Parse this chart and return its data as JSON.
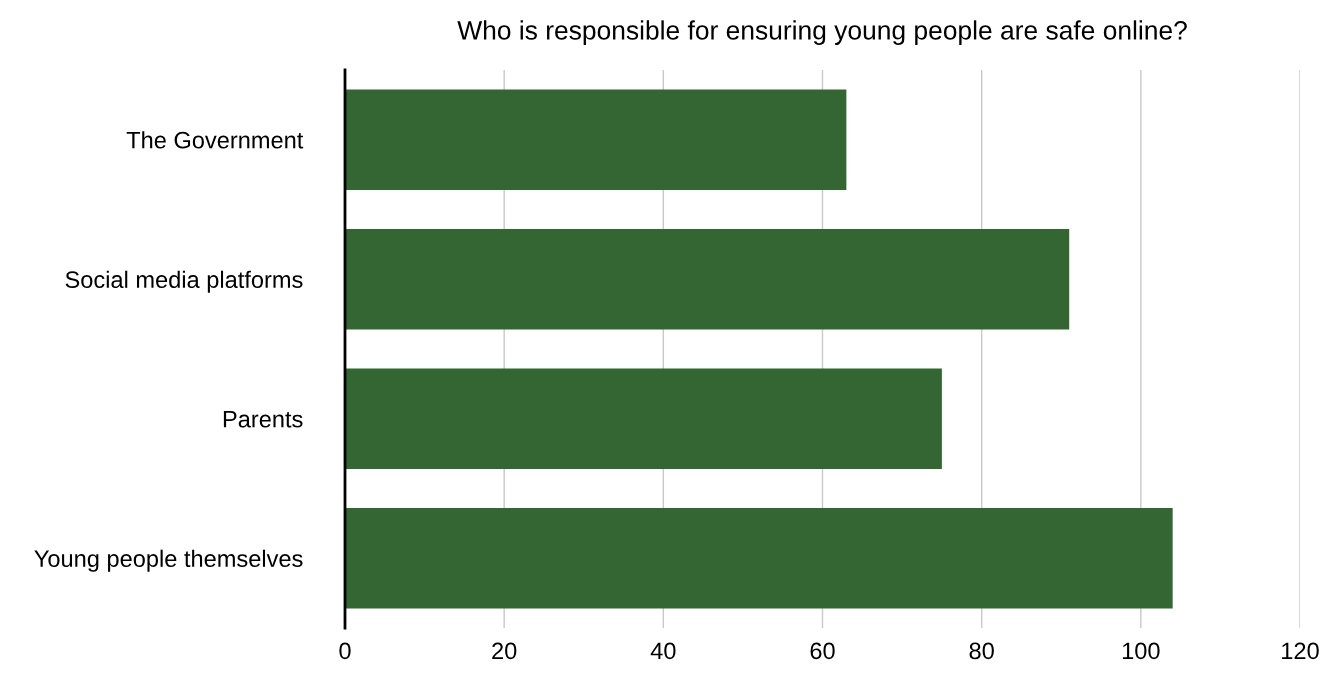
{
  "chart_data": {
    "type": "bar",
    "orientation": "horizontal",
    "title": "Who is responsible for ensuring young people are safe online?",
    "categories": [
      "The Government",
      "Social media platforms",
      "Parents",
      "Young people themselves"
    ],
    "values": [
      63,
      91,
      75,
      104
    ],
    "color": "#336633",
    "xlim": [
      0,
      120
    ],
    "xticks": [
      0,
      20,
      40,
      60,
      80,
      100,
      120
    ],
    "grid": "x"
  }
}
